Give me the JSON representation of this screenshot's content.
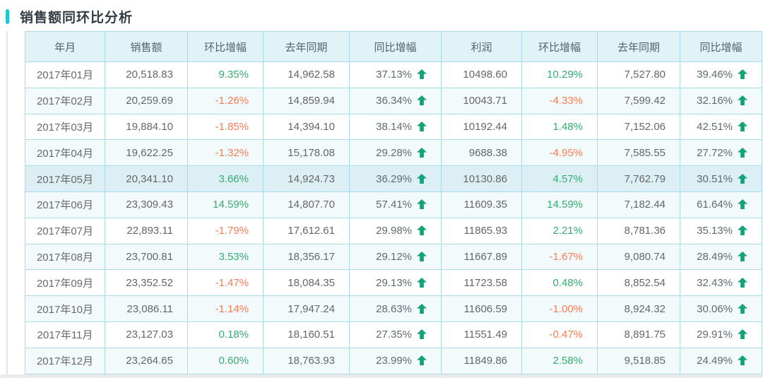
{
  "page": {
    "title": "销售额同环比分析"
  },
  "colors": {
    "accent": "#20c6cf",
    "table_border": "#abdbea",
    "header_bg": "#e2f3f7",
    "even_row_bg": "#f2fafb",
    "highlight_row_bg": "#dceff5",
    "positive_text": "#36ab72",
    "negative_text": "#f97c53",
    "arrow_green": "#13a376"
  },
  "table": {
    "headers": [
      "年月",
      "销售额",
      "环比增幅",
      "去年同期",
      "同比增幅",
      "利润",
      "环比增幅",
      "去年同期",
      "同比增幅"
    ],
    "rows": [
      {
        "month": "2017年01月",
        "sales": "20,518.83",
        "sales_mom": "9.35%",
        "sales_last_year": "14,962.58",
        "sales_yoy": "37.13%",
        "profit": "10498.60",
        "profit_mom": "10.29%",
        "profit_last_year": "7,527.80",
        "profit_yoy": "39.46%",
        "highlight": false
      },
      {
        "month": "2017年02月",
        "sales": "20,259.69",
        "sales_mom": "-1.26%",
        "sales_last_year": "14,859.94",
        "sales_yoy": "36.34%",
        "profit": "10043.71",
        "profit_mom": "-4.33%",
        "profit_last_year": "7,599.42",
        "profit_yoy": "32.16%",
        "highlight": false
      },
      {
        "month": "2017年03月",
        "sales": "19,884.10",
        "sales_mom": "-1.85%",
        "sales_last_year": "14,394.10",
        "sales_yoy": "38.14%",
        "profit": "10192.44",
        "profit_mom": "1.48%",
        "profit_last_year": "7,152.06",
        "profit_yoy": "42.51%",
        "highlight": false
      },
      {
        "month": "2017年04月",
        "sales": "19,622.25",
        "sales_mom": "-1.32%",
        "sales_last_year": "15,178.08",
        "sales_yoy": "29.28%",
        "profit": "9688.38",
        "profit_mom": "-4.95%",
        "profit_last_year": "7,585.55",
        "profit_yoy": "27.72%",
        "highlight": false
      },
      {
        "month": "2017年05月",
        "sales": "20,341.10",
        "sales_mom": "3.66%",
        "sales_last_year": "14,924.73",
        "sales_yoy": "36.29%",
        "profit": "10130.86",
        "profit_mom": "4.57%",
        "profit_last_year": "7,762.79",
        "profit_yoy": "30.51%",
        "highlight": true
      },
      {
        "month": "2017年06月",
        "sales": "23,309.43",
        "sales_mom": "14.59%",
        "sales_last_year": "14,807.70",
        "sales_yoy": "57.41%",
        "profit": "11609.35",
        "profit_mom": "14.59%",
        "profit_last_year": "7,182.44",
        "profit_yoy": "61.64%",
        "highlight": false
      },
      {
        "month": "2017年07月",
        "sales": "22,893.11",
        "sales_mom": "-1.79%",
        "sales_last_year": "17,612.61",
        "sales_yoy": "29.98%",
        "profit": "11865.93",
        "profit_mom": "2.21%",
        "profit_last_year": "8,781.36",
        "profit_yoy": "35.13%",
        "highlight": false
      },
      {
        "month": "2017年08月",
        "sales": "23,700.81",
        "sales_mom": "3.53%",
        "sales_last_year": "18,356.17",
        "sales_yoy": "29.12%",
        "profit": "11667.89",
        "profit_mom": "-1.67%",
        "profit_last_year": "9,080.74",
        "profit_yoy": "28.49%",
        "highlight": false
      },
      {
        "month": "2017年09月",
        "sales": "23,352.52",
        "sales_mom": "-1.47%",
        "sales_last_year": "18,084.35",
        "sales_yoy": "29.13%",
        "profit": "11723.58",
        "profit_mom": "0.48%",
        "profit_last_year": "8,852.54",
        "profit_yoy": "32.43%",
        "highlight": false
      },
      {
        "month": "2017年10月",
        "sales": "23,086.11",
        "sales_mom": "-1.14%",
        "sales_last_year": "17,947.24",
        "sales_yoy": "28.63%",
        "profit": "11606.59",
        "profit_mom": "-1.00%",
        "profit_last_year": "8,924.32",
        "profit_yoy": "30.06%",
        "highlight": false
      },
      {
        "month": "2017年11月",
        "sales": "23,127.03",
        "sales_mom": "0.18%",
        "sales_last_year": "18,160.51",
        "sales_yoy": "27.35%",
        "profit": "11551.49",
        "profit_mom": "-0.47%",
        "profit_last_year": "8,891.75",
        "profit_yoy": "29.91%",
        "highlight": false
      },
      {
        "month": "2017年12月",
        "sales": "23,264.65",
        "sales_mom": "0.60%",
        "sales_last_year": "18,763.93",
        "sales_yoy": "23.99%",
        "profit": "11849.86",
        "profit_mom": "2.58%",
        "profit_last_year": "9,518.85",
        "profit_yoy": "24.49%",
        "highlight": false
      }
    ]
  }
}
